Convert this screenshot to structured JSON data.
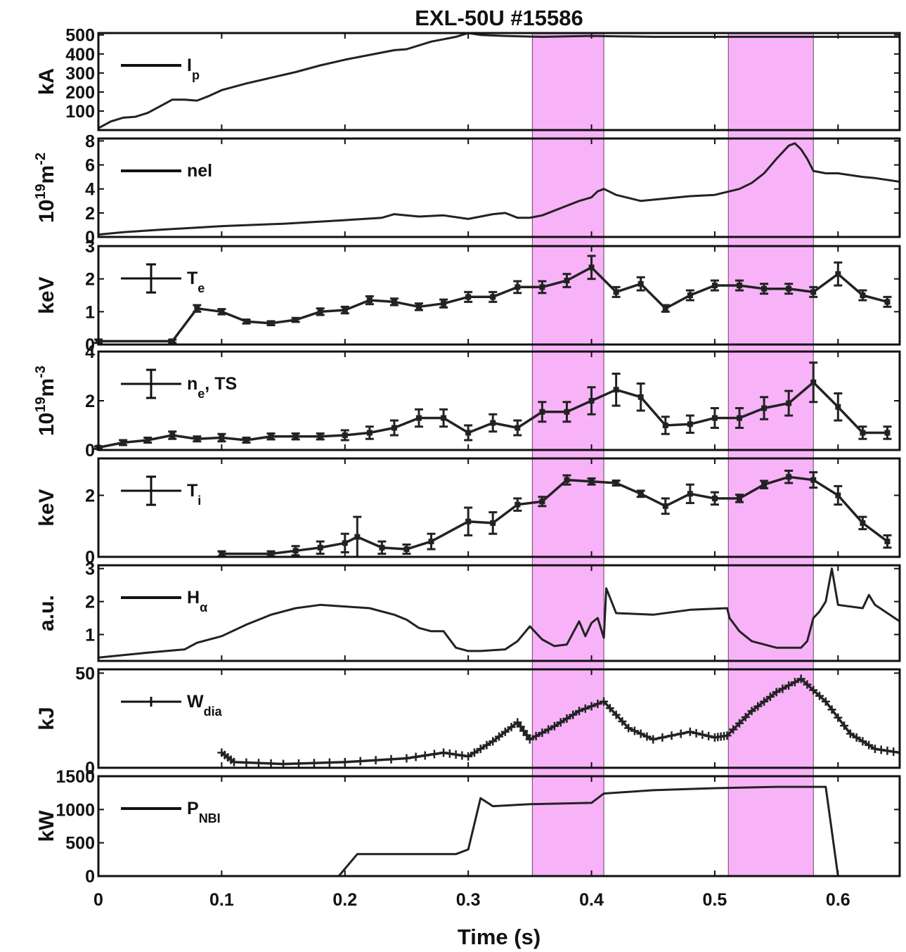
{
  "chart_data": {
    "type": "line",
    "title": "EXL-50U #15586",
    "xlabel": "Time (s)",
    "xlim": [
      0,
      0.65
    ],
    "xticks": [
      0,
      0.1,
      0.2,
      0.3,
      0.4,
      0.5,
      0.6
    ],
    "xtick_labels": [
      "0",
      "0.1",
      "0.2",
      "0.3",
      "0.4",
      "0.5",
      "0.6"
    ],
    "highlight_color": "#f8b3f8",
    "line_color": "#222222",
    "highlight_windows": [
      [
        0.352,
        0.41
      ],
      [
        0.511,
        0.58
      ]
    ],
    "panels": [
      {
        "id": "ip",
        "ylabel": "kA",
        "ylabel_exp": "",
        "ylim": [
          0,
          510
        ],
        "yticks": [
          100,
          200,
          300,
          400,
          500
        ],
        "ytick_labels": [
          "100",
          "200",
          "300",
          "400",
          "500"
        ],
        "legend": {
          "base": "I",
          "sub": "p",
          "sup": "",
          "marker": "line"
        },
        "series": {
          "name": "Ip",
          "style": "line",
          "x": [
            0,
            0.01,
            0.02,
            0.03,
            0.04,
            0.05,
            0.06,
            0.07,
            0.08,
            0.09,
            0.1,
            0.12,
            0.14,
            0.16,
            0.18,
            0.2,
            0.22,
            0.24,
            0.25,
            0.27,
            0.29,
            0.3,
            0.31,
            0.33,
            0.36,
            0.4,
            0.45,
            0.5,
            0.55,
            0.6,
            0.65
          ],
          "y": [
            10,
            45,
            65,
            70,
            90,
            125,
            160,
            160,
            155,
            180,
            210,
            245,
            275,
            305,
            340,
            370,
            395,
            420,
            425,
            465,
            490,
            510,
            500,
            495,
            490,
            495,
            490,
            490,
            490,
            490,
            490
          ]
        }
      },
      {
        "id": "nel",
        "ylabel": "10",
        "ylabel_exp": "19",
        "ylabel_tail": "m",
        "ylabel_tail_exp": "-2",
        "ylim": [
          0,
          8.2
        ],
        "yticks": [
          0,
          2,
          4,
          6,
          8
        ],
        "ytick_labels": [
          "0",
          "2",
          "4",
          "6",
          "8"
        ],
        "legend": {
          "base": "nel",
          "sub": "",
          "sup": "",
          "marker": "line"
        },
        "series": {
          "name": "nel",
          "style": "line",
          "x": [
            0,
            0.02,
            0.05,
            0.1,
            0.15,
            0.2,
            0.23,
            0.24,
            0.26,
            0.28,
            0.3,
            0.32,
            0.33,
            0.34,
            0.35,
            0.36,
            0.38,
            0.39,
            0.4,
            0.405,
            0.41,
            0.42,
            0.44,
            0.46,
            0.48,
            0.5,
            0.52,
            0.53,
            0.54,
            0.55,
            0.56,
            0.565,
            0.57,
            0.575,
            0.58,
            0.59,
            0.6,
            0.62,
            0.63,
            0.65
          ],
          "y": [
            0.2,
            0.4,
            0.6,
            0.9,
            1.1,
            1.4,
            1.6,
            1.9,
            1.7,
            1.8,
            1.5,
            1.9,
            2.0,
            1.6,
            1.6,
            1.8,
            2.6,
            3.0,
            3.3,
            3.8,
            4.0,
            3.5,
            3.0,
            3.2,
            3.4,
            3.5,
            4.0,
            4.5,
            5.3,
            6.5,
            7.6,
            7.8,
            7.3,
            6.5,
            5.5,
            5.3,
            5.3,
            5.0,
            4.9,
            4.6
          ]
        }
      },
      {
        "id": "te",
        "ylabel": "keV",
        "ylabel_exp": "",
        "ylim": [
          0,
          3
        ],
        "yticks": [
          0,
          1,
          2,
          3
        ],
        "ytick_labels": [
          "0",
          "1",
          "2",
          "3"
        ],
        "legend": {
          "base": "T",
          "sub": "e",
          "sup": "",
          "marker": "errorbar"
        },
        "series": {
          "name": "Te",
          "style": "errorbar",
          "x": [
            0,
            0.06,
            0.08,
            0.1,
            0.12,
            0.14,
            0.16,
            0.18,
            0.2,
            0.22,
            0.24,
            0.26,
            0.28,
            0.3,
            0.32,
            0.34,
            0.36,
            0.38,
            0.4,
            0.42,
            0.44,
            0.46,
            0.48,
            0.5,
            0.52,
            0.54,
            0.56,
            0.58,
            0.6,
            0.62,
            0.64
          ],
          "y": [
            0.1,
            0.1,
            1.1,
            1.0,
            0.7,
            0.65,
            0.75,
            1.0,
            1.05,
            1.35,
            1.3,
            1.15,
            1.25,
            1.45,
            1.45,
            1.75,
            1.75,
            1.95,
            2.35,
            1.6,
            1.85,
            1.1,
            1.5,
            1.8,
            1.8,
            1.7,
            1.7,
            1.6,
            2.15,
            1.5,
            1.3
          ],
          "err": [
            0.05,
            0.05,
            0.1,
            0.08,
            0.06,
            0.06,
            0.06,
            0.1,
            0.1,
            0.12,
            0.1,
            0.1,
            0.12,
            0.15,
            0.15,
            0.18,
            0.18,
            0.2,
            0.35,
            0.15,
            0.2,
            0.1,
            0.15,
            0.15,
            0.15,
            0.15,
            0.15,
            0.15,
            0.35,
            0.15,
            0.15
          ]
        }
      },
      {
        "id": "ne",
        "ylabel": "10",
        "ylabel_exp": "19",
        "ylabel_tail": "m",
        "ylabel_tail_exp": "-3",
        "ylim": [
          0,
          4
        ],
        "yticks": [
          0,
          2,
          4
        ],
        "ytick_labels": [
          "0",
          "2",
          "4"
        ],
        "legend": {
          "base": "n",
          "sub": "e",
          "tail": ", TS",
          "sup": "",
          "marker": "errorbar"
        },
        "series": {
          "name": "ne TS",
          "style": "errorbar",
          "x": [
            0,
            0.02,
            0.04,
            0.06,
            0.08,
            0.1,
            0.12,
            0.14,
            0.16,
            0.18,
            0.2,
            0.22,
            0.24,
            0.26,
            0.28,
            0.3,
            0.32,
            0.34,
            0.36,
            0.38,
            0.4,
            0.42,
            0.44,
            0.46,
            0.48,
            0.5,
            0.52,
            0.54,
            0.56,
            0.58,
            0.6,
            0.62,
            0.64
          ],
          "y": [
            0.1,
            0.3,
            0.4,
            0.6,
            0.45,
            0.5,
            0.4,
            0.55,
            0.55,
            0.55,
            0.6,
            0.7,
            0.9,
            1.3,
            1.3,
            0.7,
            1.1,
            0.9,
            1.55,
            1.55,
            2.0,
            2.45,
            2.15,
            1.0,
            1.05,
            1.3,
            1.3,
            1.7,
            1.9,
            2.75,
            1.75,
            0.7,
            0.7
          ],
          "err": [
            0.05,
            0.1,
            0.1,
            0.15,
            0.1,
            0.15,
            0.1,
            0.12,
            0.12,
            0.12,
            0.2,
            0.25,
            0.3,
            0.35,
            0.35,
            0.3,
            0.35,
            0.3,
            0.4,
            0.4,
            0.55,
            0.65,
            0.55,
            0.35,
            0.35,
            0.4,
            0.4,
            0.45,
            0.5,
            0.8,
            0.55,
            0.25,
            0.25
          ]
        }
      },
      {
        "id": "ti",
        "ylabel": "keV",
        "ylabel_exp": "",
        "ylim": [
          0,
          3.2
        ],
        "yticks": [
          0,
          2
        ],
        "ytick_labels": [
          "0",
          "2"
        ],
        "legend": {
          "base": "T",
          "sub": "i",
          "sup": "",
          "marker": "errorbar"
        },
        "series": {
          "name": "Ti",
          "style": "errorbar",
          "x": [
            0.1,
            0.14,
            0.16,
            0.18,
            0.2,
            0.21,
            0.23,
            0.25,
            0.27,
            0.3,
            0.32,
            0.34,
            0.36,
            0.38,
            0.4,
            0.42,
            0.44,
            0.46,
            0.48,
            0.5,
            0.52,
            0.54,
            0.56,
            0.58,
            0.6,
            0.62,
            0.64
          ],
          "y": [
            0.1,
            0.1,
            0.2,
            0.3,
            0.45,
            0.65,
            0.3,
            0.25,
            0.5,
            1.15,
            1.1,
            1.7,
            1.8,
            2.5,
            2.45,
            2.4,
            2.05,
            1.65,
            2.05,
            1.9,
            1.9,
            2.35,
            2.6,
            2.5,
            2.0,
            1.1,
            0.5
          ],
          "err": [
            0.08,
            0.08,
            0.15,
            0.2,
            0.3,
            0.65,
            0.2,
            0.15,
            0.25,
            0.45,
            0.35,
            0.2,
            0.15,
            0.15,
            0.1,
            0.08,
            0.1,
            0.25,
            0.3,
            0.2,
            0.12,
            0.12,
            0.2,
            0.25,
            0.3,
            0.2,
            0.2
          ]
        }
      },
      {
        "id": "ha",
        "ylabel": "a.u.",
        "ylabel_exp": "",
        "ylim": [
          0.2,
          3.1
        ],
        "yticks": [
          1,
          2,
          3
        ],
        "ytick_labels": [
          "1",
          "2",
          "3"
        ],
        "legend": {
          "base": "H",
          "sub": "α",
          "sup": "",
          "marker": "line"
        },
        "series": {
          "name": "H-alpha",
          "style": "line",
          "x": [
            0,
            0.04,
            0.07,
            0.08,
            0.1,
            0.12,
            0.14,
            0.16,
            0.18,
            0.2,
            0.22,
            0.24,
            0.25,
            0.26,
            0.27,
            0.28,
            0.29,
            0.3,
            0.31,
            0.33,
            0.34,
            0.35,
            0.36,
            0.37,
            0.38,
            0.39,
            0.395,
            0.4,
            0.405,
            0.41,
            0.412,
            0.42,
            0.45,
            0.48,
            0.51,
            0.512,
            0.52,
            0.53,
            0.54,
            0.55,
            0.56,
            0.57,
            0.575,
            0.58,
            0.585,
            0.59,
            0.595,
            0.6,
            0.62,
            0.625,
            0.63,
            0.65
          ],
          "y": [
            0.3,
            0.45,
            0.55,
            0.75,
            0.95,
            1.3,
            1.6,
            1.8,
            1.9,
            1.85,
            1.8,
            1.6,
            1.45,
            1.2,
            1.1,
            1.1,
            0.6,
            0.5,
            0.5,
            0.55,
            0.8,
            1.25,
            0.85,
            0.65,
            0.7,
            1.4,
            0.95,
            1.35,
            1.5,
            0.9,
            2.4,
            1.65,
            1.6,
            1.75,
            1.8,
            1.5,
            1.1,
            0.8,
            0.7,
            0.6,
            0.6,
            0.6,
            0.8,
            1.5,
            1.7,
            2.0,
            3.0,
            1.9,
            1.8,
            2.2,
            1.9,
            1.4
          ]
        }
      },
      {
        "id": "wdia",
        "ylabel": "kJ",
        "ylabel_exp": "",
        "ylim": [
          0,
          52
        ],
        "yticks": [
          0,
          50
        ],
        "ytick_labels": [
          "0",
          "50"
        ],
        "legend": {
          "base": "W",
          "sub": "dia",
          "sup": "",
          "marker": "plus"
        },
        "series": {
          "name": "Wdia",
          "style": "plus",
          "x": [
            0.1,
            0.11,
            0.15,
            0.2,
            0.25,
            0.28,
            0.3,
            0.32,
            0.34,
            0.35,
            0.37,
            0.39,
            0.41,
            0.43,
            0.45,
            0.48,
            0.5,
            0.51,
            0.53,
            0.55,
            0.57,
            0.59,
            0.61,
            0.63,
            0.65
          ],
          "y": [
            8,
            3,
            2,
            3,
            5,
            8,
            6,
            14,
            24,
            15,
            22,
            30,
            35,
            21,
            15,
            19,
            16,
            17,
            30,
            40,
            47,
            35,
            18,
            10,
            8
          ]
        }
      },
      {
        "id": "pnbi",
        "ylabel": "kW",
        "ylabel_exp": "",
        "ylim": [
          0,
          1500
        ],
        "yticks": [
          0,
          500,
          1000,
          1500
        ],
        "ytick_labels": [
          "0",
          "500",
          "1000",
          "1500"
        ],
        "legend": {
          "base": "P",
          "sub": "NBI",
          "sup": "",
          "marker": "line"
        },
        "series": {
          "name": "PNBI",
          "style": "line",
          "x": [
            0.1,
            0.195,
            0.21,
            0.25,
            0.29,
            0.3,
            0.31,
            0.32,
            0.35,
            0.4,
            0.41,
            0.45,
            0.5,
            0.55,
            0.59,
            0.6
          ],
          "y": [
            0,
            0,
            330,
            330,
            330,
            400,
            1170,
            1050,
            1080,
            1100,
            1240,
            1290,
            1320,
            1340,
            1340,
            0
          ]
        }
      }
    ]
  }
}
